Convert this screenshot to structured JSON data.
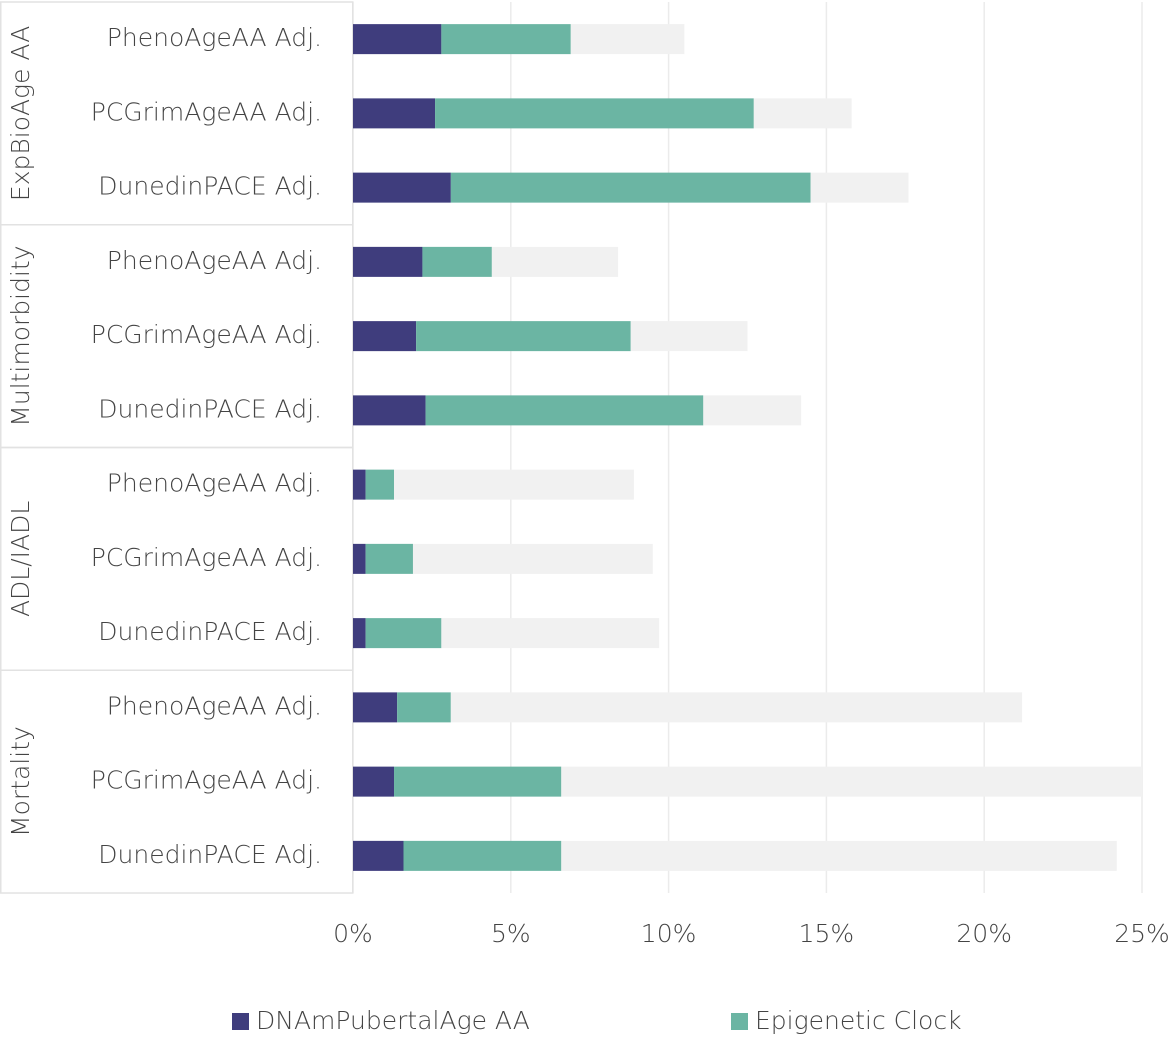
{
  "chart_data": {
    "type": "stacked-barh",
    "groups": [
      "ExpBioAge AA",
      "Multimorbidity",
      "ADL/IADL",
      "Mortality"
    ],
    "categories": [
      "PhenoAgeAA Adj.",
      "PCGrimAgeAA Adj.",
      "DunedinPACE Adj.",
      "PhenoAgeAA Adj.",
      "PCGrimAgeAA Adj.",
      "DunedinPACE Adj.",
      "PhenoAgeAA Adj.",
      "PCGrimAgeAA Adj.",
      "DunedinPACE Adj.",
      "PhenoAgeAA Adj.",
      "PCGrimAgeAA Adj.",
      "DunedinPACE Adj."
    ],
    "series": [
      {
        "name": "DNAmPubertalAge AA",
        "color": "#3f3d7d",
        "values": [
          2.8,
          2.6,
          3.1,
          2.2,
          2.0,
          2.3,
          0.4,
          0.4,
          0.4,
          1.4,
          1.3,
          1.6
        ]
      },
      {
        "name": "Epigenetic Clock",
        "color": "#6bb5a3",
        "values": [
          4.1,
          10.1,
          11.4,
          2.2,
          6.8,
          8.8,
          0.9,
          1.5,
          2.4,
          1.7,
          5.3,
          5.0
        ]
      },
      {
        "color": "#f1f1f1",
        "values": [
          3.6,
          3.1,
          3.1,
          4.0,
          3.7,
          3.1,
          7.6,
          7.6,
          6.9,
          18.1,
          18.4,
          17.6
        ]
      }
    ],
    "xlim": [
      0,
      25
    ],
    "xticks": [
      {
        "value": 0,
        "label": "0%"
      },
      {
        "value": 5,
        "label": "5%"
      },
      {
        "value": 10,
        "label": "10%"
      },
      {
        "value": 15,
        "label": "15%"
      },
      {
        "value": 20,
        "label": "20%"
      },
      {
        "value": 25,
        "label": "25%"
      }
    ],
    "grid": true
  }
}
